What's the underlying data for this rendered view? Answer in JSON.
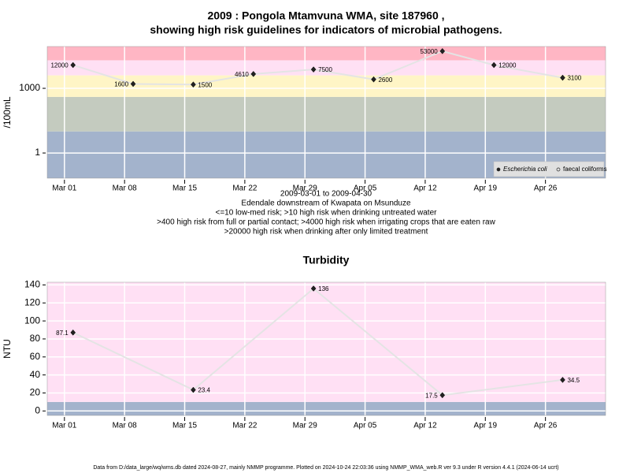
{
  "title": "2009 : Pongola Mtamvuna WMA, site 187960 ,",
  "subtitle": "showing high risk guidelines for indicators of microbial pathogens.",
  "footer": "Data from D:/data_large/wq/wms.db dated 2024-08-27, mainly NMMP programme. Plotted on 2024-10-24 22:03:36 using NMMP_WMA_web.R ver 9.3 under R version 4.4.1 (2024-06-14 ucrt)",
  "chart_data": [
    {
      "type": "line",
      "log_y": true,
      "ylabel": "/100mL",
      "notes": [
        "2009-03-01 to 2009-04-30",
        "Edendale downstream of Kwapata on Msunduze",
        "<=10 low-med risk; >10 high risk when drinking untreated water",
        ">400 high risk from full or partial contact; >4000 high risk when irrigating crops that are eaten raw",
        ">20000 high risk when drinking after only limited treatment"
      ],
      "x": [
        "2009-03-02",
        "2009-03-09",
        "2009-03-16",
        "2009-03-23",
        "2009-03-30",
        "2009-04-06",
        "2009-04-14",
        "2009-04-20",
        "2009-04-28"
      ],
      "series": [
        {
          "name": "Escherichia coli",
          "color": "#222222",
          "values": [
            12000,
            1600,
            1500,
            4610,
            7500,
            2600,
            53000,
            12000,
            3100
          ]
        },
        {
          "name": "faecal coliforms",
          "color": "#222222",
          "values": [
            null,
            null,
            null,
            null,
            null,
            null,
            null,
            null,
            null
          ]
        }
      ],
      "band_edges": [
        10,
        400,
        4000,
        20000
      ],
      "band_colors": [
        "#a3b3cc",
        "#c4cbbf",
        "#fff5c6",
        "#ffe0f4",
        "#ffb6c4"
      ],
      "xlim": [
        "2009-02-27",
        "2009-05-03"
      ],
      "xticks": [
        {
          "value": "2009-03-01",
          "label": "Mar 01"
        },
        {
          "value": "2009-03-08",
          "label": "Mar 08"
        },
        {
          "value": "2009-03-15",
          "label": "Mar 15"
        },
        {
          "value": "2009-03-22",
          "label": "Mar 22"
        },
        {
          "value": "2009-03-29",
          "label": "Mar 29"
        },
        {
          "value": "2009-04-05",
          "label": "Apr 05"
        },
        {
          "value": "2009-04-12",
          "label": "Apr 12"
        },
        {
          "value": "2009-04-19",
          "label": "Apr 19"
        },
        {
          "value": "2009-04-26",
          "label": "Apr 26"
        }
      ],
      "ylim": [
        0.068,
        87000
      ],
      "yticks": [
        1,
        1000
      ],
      "grid": true,
      "legend": "bottom-right"
    },
    {
      "type": "line",
      "title": "Turbidity",
      "ylabel": "NTU",
      "x": [
        "2009-03-02",
        "2009-03-16",
        "2009-03-30",
        "2009-04-14",
        "2009-04-28"
      ],
      "series": [
        {
          "name": "Turbidity",
          "color": "#222222",
          "values": [
            87.1,
            23.4,
            136,
            17.5,
            34.5
          ]
        }
      ],
      "band_edges": [
        10
      ],
      "band_colors": [
        "#a3b3cc",
        "#ffe0f4"
      ],
      "xlim": [
        "2009-02-27",
        "2009-05-03"
      ],
      "xticks": [
        {
          "value": "2009-03-01",
          "label": "Mar 01"
        },
        {
          "value": "2009-03-08",
          "label": "Mar 08"
        },
        {
          "value": "2009-03-15",
          "label": "Mar 15"
        },
        {
          "value": "2009-03-22",
          "label": "Mar 22"
        },
        {
          "value": "2009-03-29",
          "label": "Mar 29"
        },
        {
          "value": "2009-04-05",
          "label": "Apr 05"
        },
        {
          "value": "2009-04-12",
          "label": "Apr 12"
        },
        {
          "value": "2009-04-19",
          "label": "Apr 19"
        },
        {
          "value": "2009-04-26",
          "label": "Apr 26"
        }
      ],
      "ylim": [
        -5,
        143
      ],
      "yticks": [
        0,
        20,
        40,
        60,
        80,
        100,
        120,
        140
      ],
      "grid": true
    }
  ]
}
